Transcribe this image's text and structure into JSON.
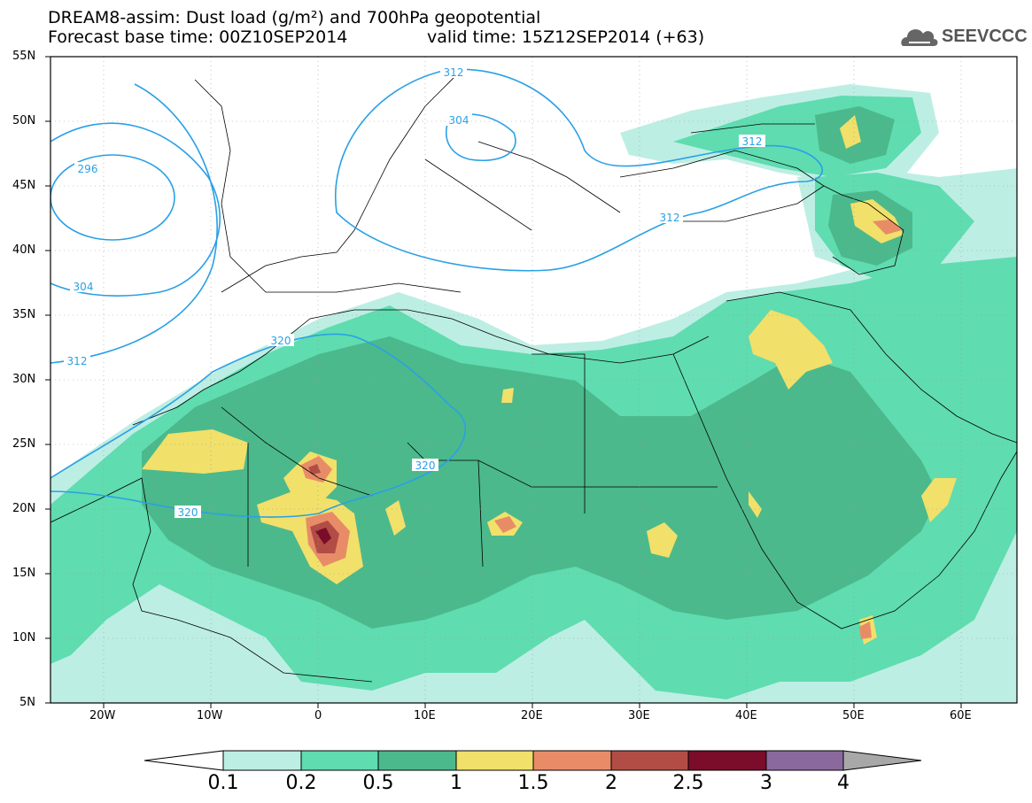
{
  "header": {
    "title": "DREAM8-assim: Dust load (g/m²) and 700hPa geopotential",
    "base_time": "Forecast base time: 00Z10SEP2014",
    "valid_time": "valid time: 15Z12SEP2014 (+63)"
  },
  "logo": {
    "text": "SEEVCCC",
    "icon": "cloud-icon"
  },
  "map": {
    "lat_labels": [
      "55N",
      "50N",
      "45N",
      "40N",
      "35N",
      "30N",
      "25N",
      "20N",
      "15N",
      "10N",
      "5N"
    ],
    "lon_labels": [
      "20W",
      "10W",
      "0",
      "10E",
      "20E",
      "30E",
      "40E",
      "50E",
      "60E"
    ],
    "contour_labels": [
      "312",
      "304",
      "312",
      "312",
      "296",
      "304",
      "312",
      "320",
      "320",
      "320"
    ]
  },
  "colorbar": {
    "labels": [
      "0.1",
      "0.2",
      "0.5",
      "1",
      "1.5",
      "2",
      "2.5",
      "3",
      "4"
    ],
    "colors": [
      "#bdeee3",
      "#5fdcb0",
      "#4bb98c",
      "#f1e06a",
      "#e88c68",
      "#b24d45",
      "#7b0c2a",
      "#8a6a9e",
      "#a8a8a8"
    ]
  }
}
